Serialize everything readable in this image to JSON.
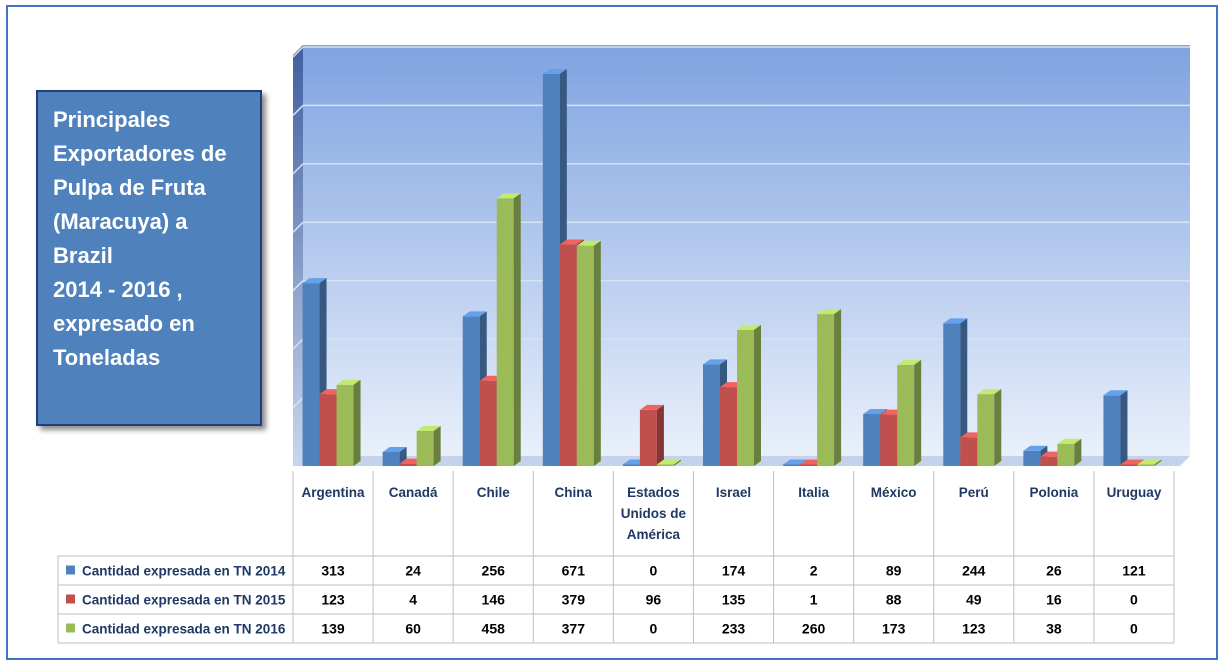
{
  "chart_data": {
    "type": "bar",
    "title_lines": [
      "Principales",
      "Exportadores de",
      "Pulpa de Fruta",
      "(Maracuya) a",
      "Brazil",
      "2014 - 2016 ,",
      "expresado en",
      "Toneladas"
    ],
    "categories": [
      [
        "Argentina"
      ],
      [
        "Canadá"
      ],
      [
        "Chile"
      ],
      [
        "China"
      ],
      [
        "Estados",
        "Unidos de",
        "América"
      ],
      [
        "Israel"
      ],
      [
        "Italia"
      ],
      [
        "México"
      ],
      [
        "Perú"
      ],
      [
        "Polonia"
      ],
      [
        "Uruguay"
      ]
    ],
    "series": [
      {
        "name": "Cantidad expresada en TN 2014",
        "color": "#4f81bd",
        "values": [
          313,
          24,
          256,
          671,
          0,
          174,
          2,
          89,
          244,
          26,
          121
        ]
      },
      {
        "name": "Cantidad expresada en TN 2015",
        "color": "#c0504d",
        "values": [
          123,
          4,
          146,
          379,
          96,
          135,
          1,
          88,
          49,
          16,
          0
        ]
      },
      {
        "name": "Cantidad expresada en TN 2016",
        "color": "#9bbb59",
        "values": [
          139,
          60,
          458,
          377,
          0,
          233,
          260,
          173,
          123,
          38,
          0
        ]
      }
    ],
    "ylim": [
      0,
      700
    ],
    "grid": true,
    "legend": "data table",
    "xlabel": "",
    "ylabel": ""
  }
}
